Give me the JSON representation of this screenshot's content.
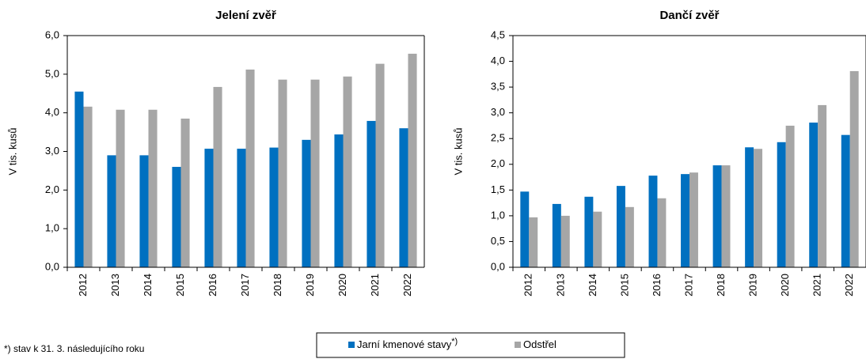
{
  "chart_data": [
    {
      "type": "bar",
      "title": "Jelení zvěř",
      "ylabel": "V tis. kusů",
      "categories": [
        "2012",
        "2013",
        "2014",
        "2015",
        "2016",
        "2017",
        "2018",
        "2019",
        "2020",
        "2021",
        "2022"
      ],
      "series": [
        {
          "name": "Jarní kmenové stavy",
          "color": "#0070c0",
          "values": [
            4.55,
            2.9,
            2.9,
            2.6,
            3.07,
            3.07,
            3.1,
            3.3,
            3.44,
            3.79,
            3.6
          ]
        },
        {
          "name": "Odstřel",
          "color": "#a6a6a6",
          "values": [
            4.16,
            4.08,
            4.08,
            3.85,
            4.67,
            5.12,
            4.86,
            4.86,
            4.94,
            5.27,
            5.53
          ]
        }
      ],
      "ylim": [
        0,
        6
      ],
      "yticks": [
        {
          "value": 0,
          "label": "0,0"
        },
        {
          "value": 1,
          "label": "1,0"
        },
        {
          "value": 2,
          "label": "2,0"
        },
        {
          "value": 3,
          "label": "3,0"
        },
        {
          "value": 4,
          "label": "4,0"
        },
        {
          "value": 5,
          "label": "5,0"
        },
        {
          "value": 6,
          "label": "6,0"
        }
      ]
    },
    {
      "type": "bar",
      "title": "Dančí zvěř",
      "ylabel": "V tis. kusů",
      "categories": [
        "2012",
        "2013",
        "2014",
        "2015",
        "2016",
        "2017",
        "2018",
        "2019",
        "2020",
        "2021",
        "2022"
      ],
      "series": [
        {
          "name": "Jarní kmenové stavy",
          "color": "#0070c0",
          "values": [
            1.47,
            1.23,
            1.37,
            1.58,
            1.78,
            1.81,
            1.98,
            2.33,
            2.43,
            2.81,
            2.57
          ]
        },
        {
          "name": "Odstřel",
          "color": "#a6a6a6",
          "values": [
            0.97,
            1.0,
            1.08,
            1.17,
            1.34,
            1.84,
            1.98,
            2.3,
            2.75,
            3.15,
            3.81
          ]
        }
      ],
      "ylim": [
        0,
        4.5
      ],
      "yticks": [
        {
          "value": 0,
          "label": "0,0"
        },
        {
          "value": 0.5,
          "label": "0,5"
        },
        {
          "value": 1,
          "label": "1,0"
        },
        {
          "value": 1.5,
          "label": "1,5"
        },
        {
          "value": 2,
          "label": "2,0"
        },
        {
          "value": 2.5,
          "label": "2,5"
        },
        {
          "value": 3,
          "label": "3,0"
        },
        {
          "value": 3.5,
          "label": "3,5"
        },
        {
          "value": 4,
          "label": "4,0"
        },
        {
          "value": 4.5,
          "label": "4,5"
        }
      ]
    }
  ],
  "series_note": "*)",
  "footnote": "*) stav k 31. 3. následujícího roku"
}
